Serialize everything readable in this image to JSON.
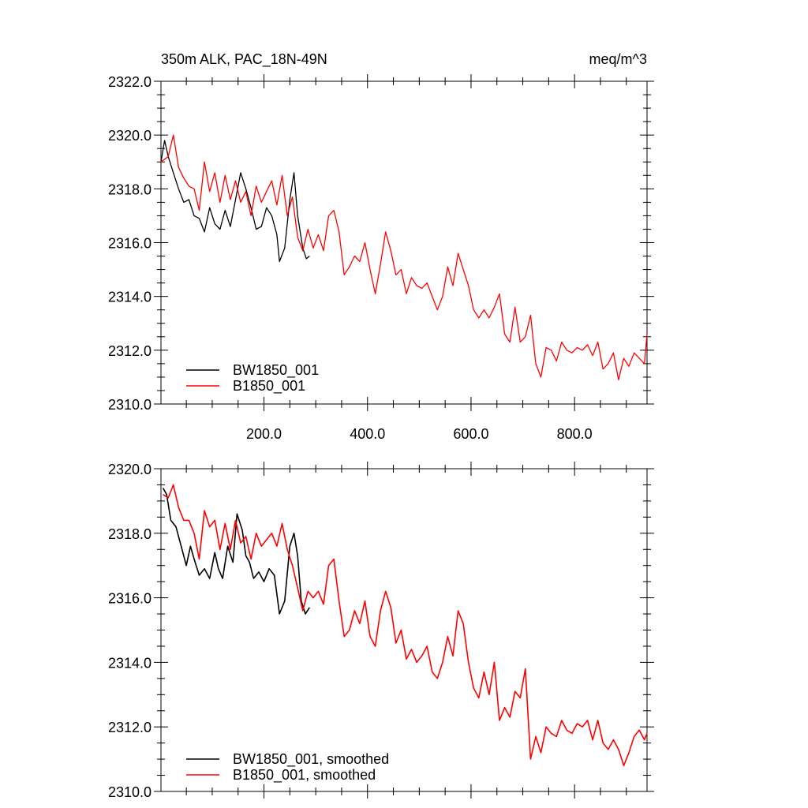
{
  "chart_data": [
    {
      "type": "line",
      "title": "350m ALK, PAC_18N-49N",
      "units": "meq/m^3",
      "xlabel": "",
      "ylabel": "",
      "xlim": [
        1,
        940
      ],
      "ylim": [
        2310,
        2322
      ],
      "x_ticks": [
        "200.0",
        "400.0",
        "600.0",
        "800.0"
      ],
      "y_ticks": [
        "2310.0",
        "2312.0",
        "2314.0",
        "2316.0",
        "2318.0",
        "2320.0",
        "2322.0"
      ],
      "grid": false,
      "legend_position": "bottom-left",
      "series": [
        {
          "name": "BW1850_001",
          "color": "#000000",
          "x": [
            1,
            8,
            15,
            25,
            35,
            45,
            55,
            65,
            75,
            85,
            95,
            105,
            115,
            125,
            135,
            145,
            155,
            165,
            175,
            185,
            195,
            205,
            215,
            225,
            230,
            240,
            250,
            258,
            265,
            275,
            282,
            288
          ],
          "y": [
            2319.0,
            2319.8,
            2319.2,
            2318.6,
            2318.0,
            2317.5,
            2317.6,
            2317.0,
            2316.9,
            2316.4,
            2317.3,
            2316.7,
            2316.5,
            2317.2,
            2316.6,
            2317.6,
            2318.6,
            2318.0,
            2317.3,
            2316.5,
            2316.6,
            2317.3,
            2317.0,
            2316.3,
            2315.3,
            2315.8,
            2317.6,
            2318.6,
            2317.0,
            2315.8,
            2315.4,
            2315.5
          ]
        },
        {
          "name": "B1850_001",
          "color": "#ff0000",
          "x": [
            1,
            15,
            25,
            35,
            45,
            55,
            65,
            75,
            85,
            95,
            105,
            115,
            125,
            135,
            145,
            155,
            165,
            175,
            185,
            195,
            205,
            215,
            225,
            235,
            245,
            255,
            265,
            275,
            285,
            295,
            305,
            315,
            325,
            335,
            345,
            355,
            365,
            375,
            385,
            395,
            405,
            415,
            425,
            435,
            445,
            455,
            465,
            475,
            485,
            495,
            505,
            515,
            525,
            535,
            545,
            555,
            565,
            575,
            585,
            595,
            605,
            615,
            625,
            635,
            645,
            655,
            665,
            675,
            685,
            695,
            705,
            715,
            725,
            735,
            745,
            755,
            765,
            775,
            785,
            795,
            805,
            815,
            825,
            835,
            845,
            855,
            865,
            875,
            885,
            895,
            905,
            915,
            925,
            935,
            940
          ],
          "y": [
            2319.0,
            2319.2,
            2320.0,
            2318.8,
            2318.4,
            2318.1,
            2318.0,
            2317.2,
            2319.0,
            2317.9,
            2318.6,
            2317.5,
            2318.5,
            2317.6,
            2318.3,
            2317.5,
            2317.9,
            2317.0,
            2318.1,
            2317.5,
            2317.9,
            2318.3,
            2317.4,
            2318.5,
            2317.0,
            2317.7,
            2316.2,
            2315.7,
            2316.5,
            2315.8,
            2316.3,
            2315.7,
            2317.0,
            2317.2,
            2316.4,
            2314.8,
            2315.1,
            2315.5,
            2315.3,
            2316.0,
            2315.0,
            2314.1,
            2315.2,
            2316.4,
            2315.7,
            2314.8,
            2315.0,
            2314.1,
            2314.7,
            2314.4,
            2314.3,
            2314.5,
            2314.0,
            2313.5,
            2314.0,
            2315.1,
            2314.4,
            2315.6,
            2315.0,
            2314.4,
            2313.5,
            2313.2,
            2313.5,
            2313.2,
            2313.6,
            2314.1,
            2312.6,
            2312.3,
            2313.6,
            2312.3,
            2312.5,
            2313.3,
            2311.5,
            2311.0,
            2312.1,
            2312.0,
            2311.6,
            2312.3,
            2312.0,
            2311.9,
            2312.1,
            2312.0,
            2312.2,
            2311.8,
            2312.3,
            2311.3,
            2311.5,
            2311.9,
            2310.9,
            2311.7,
            2311.4,
            2311.9,
            2311.7,
            2311.5,
            2312.6
          ]
        }
      ]
    },
    {
      "type": "line",
      "title": "",
      "xlabel": "",
      "ylabel": "",
      "xlim": [
        1,
        940
      ],
      "ylim": [
        2310,
        2320
      ],
      "y_ticks": [
        "2310.0",
        "2312.0",
        "2314.0",
        "2316.0",
        "2318.0",
        "2320.0"
      ],
      "grid": false,
      "legend_position": "bottom-left",
      "series": [
        {
          "name": "BW1850_001, smoothed",
          "color": "#000000",
          "x": [
            5,
            12,
            20,
            30,
            40,
            50,
            58,
            65,
            75,
            85,
            95,
            105,
            112,
            120,
            130,
            140,
            148,
            158,
            165,
            172,
            180,
            190,
            200,
            210,
            220,
            230,
            240,
            250,
            258,
            265,
            272,
            280,
            288
          ],
          "y": [
            2319.4,
            2319.2,
            2318.4,
            2318.2,
            2317.6,
            2317.0,
            2317.6,
            2317.2,
            2316.7,
            2316.9,
            2316.6,
            2317.4,
            2316.9,
            2316.6,
            2317.6,
            2317.1,
            2318.6,
            2318.1,
            2317.3,
            2317.1,
            2316.6,
            2316.8,
            2316.5,
            2316.9,
            2316.7,
            2315.5,
            2315.9,
            2317.6,
            2318.0,
            2317.3,
            2315.9,
            2315.5,
            2315.7
          ]
        },
        {
          "name": "B1850_001, smoothed",
          "color": "#ff0000",
          "x": [
            5,
            15,
            25,
            35,
            45,
            55,
            65,
            75,
            85,
            95,
            105,
            115,
            125,
            135,
            145,
            155,
            165,
            175,
            185,
            195,
            205,
            215,
            225,
            235,
            245,
            255,
            265,
            275,
            285,
            295,
            305,
            315,
            325,
            335,
            345,
            355,
            365,
            375,
            385,
            395,
            405,
            415,
            425,
            435,
            445,
            455,
            465,
            475,
            485,
            495,
            505,
            515,
            525,
            535,
            545,
            555,
            565,
            575,
            585,
            595,
            605,
            615,
            625,
            635,
            645,
            655,
            665,
            675,
            685,
            695,
            705,
            715,
            725,
            735,
            745,
            755,
            765,
            775,
            785,
            795,
            805,
            815,
            825,
            835,
            845,
            855,
            865,
            875,
            885,
            895,
            905,
            915,
            925,
            935,
            940
          ],
          "y": [
            2319.2,
            2319.1,
            2319.5,
            2318.8,
            2318.4,
            2318.4,
            2318.0,
            2317.2,
            2318.7,
            2318.2,
            2318.4,
            2317.5,
            2318.3,
            2317.5,
            2318.4,
            2317.7,
            2317.9,
            2317.2,
            2318.0,
            2317.6,
            2317.8,
            2318.0,
            2317.6,
            2318.3,
            2317.5,
            2317.0,
            2316.3,
            2315.6,
            2316.2,
            2316.0,
            2316.2,
            2315.8,
            2317.0,
            2317.2,
            2315.9,
            2314.8,
            2315.0,
            2315.6,
            2315.2,
            2315.9,
            2314.8,
            2314.5,
            2315.6,
            2316.2,
            2315.7,
            2314.6,
            2315.0,
            2314.1,
            2314.4,
            2314.0,
            2314.2,
            2314.5,
            2313.7,
            2313.5,
            2314.0,
            2314.8,
            2314.2,
            2315.6,
            2315.2,
            2314.0,
            2313.2,
            2312.9,
            2313.7,
            2313.0,
            2314.0,
            2312.2,
            2312.6,
            2312.3,
            2313.1,
            2312.9,
            2313.8,
            2311.0,
            2311.7,
            2311.2,
            2312.0,
            2311.8,
            2311.7,
            2312.2,
            2311.9,
            2311.8,
            2312.1,
            2312.0,
            2312.2,
            2311.6,
            2312.2,
            2311.5,
            2311.3,
            2311.6,
            2311.3,
            2310.8,
            2311.2,
            2311.7,
            2311.9,
            2311.6,
            2311.8
          ]
        }
      ]
    }
  ]
}
